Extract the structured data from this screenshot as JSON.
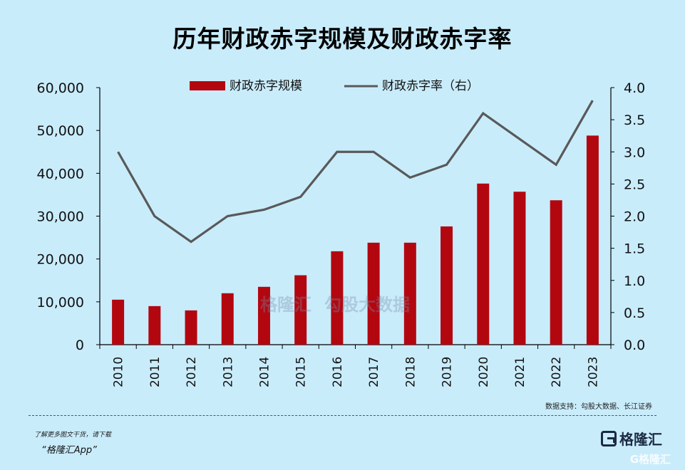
{
  "title": "历年财政赤字规模及财政赤字率",
  "source": "数据支持：勾股大数据、长江证券",
  "footer": {
    "promo": "了解更多图文干货，请下载",
    "app_name": "“格隆汇App”",
    "logo_text": "格隆汇",
    "corner_watermark": "G格隆汇"
  },
  "watermark": {
    "left": "格隆汇",
    "right": "勾股大数据"
  },
  "chart_data": {
    "type": "bar+line",
    "categories": [
      "2010",
      "2011",
      "2012",
      "2013",
      "2014",
      "2015",
      "2016",
      "2017",
      "2018",
      "2019",
      "2020",
      "2021",
      "2022",
      "2023"
    ],
    "series": [
      {
        "name": "财政赤字规模",
        "type": "bar",
        "axis": "left",
        "values": [
          10500,
          9000,
          8000,
          12000,
          13500,
          16200,
          21800,
          23800,
          23800,
          27600,
          37600,
          35700,
          33700,
          48800
        ],
        "color": "#b30710"
      },
      {
        "name": "财政赤字率（右）",
        "type": "line",
        "axis": "right",
        "values": [
          3.0,
          2.0,
          1.6,
          2.0,
          2.1,
          2.3,
          3.0,
          3.0,
          2.6,
          2.8,
          3.6,
          3.2,
          2.8,
          3.8
        ],
        "color": "#595959"
      }
    ],
    "y_left": {
      "min": 0,
      "max": 60000,
      "ticks": [
        "0",
        "10,000",
        "20,000",
        "30,000",
        "40,000",
        "50,000",
        "60,000"
      ]
    },
    "y_right": {
      "min": 0,
      "max": 4.0,
      "ticks": [
        "0.0",
        "0.5",
        "1.0",
        "1.5",
        "2.0",
        "2.5",
        "3.0",
        "3.5",
        "4.0"
      ]
    },
    "legend_position": "top-center",
    "grid": false
  }
}
